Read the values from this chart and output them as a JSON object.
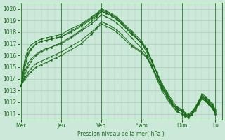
{
  "background_color": "#cce8d8",
  "grid_color": "#aaccbb",
  "line_color": "#1a6b1a",
  "marker_color": "#1a6b1a",
  "xlabel_text": "Pression niveau de la mer( hPa )",
  "x_tick_labels": [
    "Mer",
    "Jeu",
    "Ven",
    "Sam",
    "Dim",
    "Lu"
  ],
  "x_tick_positions": [
    0,
    48,
    96,
    144,
    192,
    232
  ],
  "ylim": [
    1010.5,
    1020.5
  ],
  "xlim": [
    -2,
    240
  ],
  "yticks": [
    1011,
    1012,
    1013,
    1014,
    1015,
    1016,
    1017,
    1018,
    1019,
    1020
  ],
  "lines": [
    {
      "x": [
        0,
        4,
        8,
        12,
        18,
        24,
        30,
        36,
        42,
        48,
        60,
        72,
        84,
        90,
        96,
        102,
        108,
        114,
        120,
        132,
        144,
        150,
        156,
        162,
        168,
        174,
        180,
        186,
        192,
        196,
        200,
        204,
        208,
        212,
        216,
        220,
        224,
        228,
        232
      ],
      "y": [
        1013.4,
        1014.2,
        1015.0,
        1015.5,
        1016.0,
        1016.3,
        1016.5,
        1016.7,
        1016.9,
        1017.1,
        1017.6,
        1018.2,
        1018.9,
        1019.3,
        1019.8,
        1019.6,
        1019.4,
        1019.1,
        1018.7,
        1017.9,
        1017.0,
        1016.5,
        1015.5,
        1014.5,
        1013.5,
        1012.8,
        1012.0,
        1011.5,
        1011.3,
        1011.0,
        1010.8,
        1011.0,
        1011.5,
        1012.0,
        1012.5,
        1012.3,
        1012.0,
        1011.7,
        1011.2
      ]
    },
    {
      "x": [
        0,
        4,
        8,
        12,
        18,
        24,
        30,
        36,
        42,
        48,
        60,
        72,
        84,
        90,
        96,
        102,
        108,
        114,
        120,
        132,
        144,
        150,
        156,
        162,
        168,
        174,
        180,
        186,
        192,
        196,
        200,
        204,
        208,
        212,
        216,
        220,
        224,
        228,
        232
      ],
      "y": [
        1013.4,
        1014.8,
        1016.0,
        1016.5,
        1017.0,
        1017.2,
        1017.3,
        1017.4,
        1017.5,
        1017.6,
        1018.1,
        1018.6,
        1019.2,
        1019.5,
        1019.9,
        1019.7,
        1019.5,
        1019.2,
        1018.8,
        1018.0,
        1017.0,
        1016.3,
        1015.2,
        1014.2,
        1013.2,
        1012.5,
        1011.8,
        1011.2,
        1011.0,
        1010.8,
        1010.7,
        1011.0,
        1011.5,
        1012.0,
        1012.5,
        1012.2,
        1011.9,
        1011.6,
        1011.1
      ]
    },
    {
      "x": [
        0,
        4,
        8,
        12,
        18,
        24,
        30,
        36,
        42,
        48,
        60,
        72,
        84,
        90,
        96,
        102,
        108,
        114,
        120,
        132,
        144,
        150,
        156,
        162,
        168,
        174,
        180,
        186,
        192,
        196,
        200,
        204,
        208,
        212,
        216,
        220,
        224,
        228,
        232
      ],
      "y": [
        1013.4,
        1014.5,
        1015.3,
        1015.7,
        1016.1,
        1016.4,
        1016.6,
        1016.7,
        1016.9,
        1017.0,
        1017.5,
        1018.1,
        1018.7,
        1019.1,
        1019.5,
        1019.3,
        1019.1,
        1018.8,
        1018.4,
        1017.5,
        1016.6,
        1016.0,
        1015.0,
        1014.0,
        1013.0,
        1012.3,
        1011.7,
        1011.2,
        1011.0,
        1010.8,
        1010.7,
        1010.9,
        1011.3,
        1011.8,
        1012.3,
        1012.1,
        1011.8,
        1011.5,
        1011.0
      ]
    },
    {
      "x": [
        0,
        4,
        8,
        12,
        18,
        24,
        30,
        36,
        42,
        48,
        60,
        72,
        84,
        90,
        96,
        102,
        108,
        114,
        120,
        132,
        144,
        150,
        156,
        162,
        168,
        174,
        180,
        186,
        192,
        196,
        200,
        204,
        208,
        212,
        216,
        220,
        224,
        228,
        232
      ],
      "y": [
        1013.4,
        1013.9,
        1014.3,
        1014.6,
        1015.0,
        1015.2,
        1015.4,
        1015.6,
        1015.8,
        1016.0,
        1016.5,
        1017.0,
        1017.8,
        1018.3,
        1018.7,
        1018.5,
        1018.3,
        1018.0,
        1017.6,
        1016.8,
        1016.2,
        1015.8,
        1015.0,
        1014.2,
        1013.3,
        1012.6,
        1011.9,
        1011.4,
        1011.2,
        1011.0,
        1010.9,
        1011.1,
        1011.5,
        1012.0,
        1012.4,
        1012.2,
        1011.9,
        1011.6,
        1011.1
      ]
    },
    {
      "x": [
        0,
        4,
        8,
        12,
        18,
        24,
        30,
        36,
        42,
        48,
        60,
        72,
        84,
        90,
        96,
        102,
        108,
        114,
        120,
        132,
        144,
        150,
        156,
        162,
        168,
        174,
        180,
        186,
        192,
        196,
        200,
        204,
        208,
        212,
        216,
        220,
        224,
        228,
        232
      ],
      "y": [
        1013.4,
        1014.0,
        1014.5,
        1014.9,
        1015.3,
        1015.5,
        1015.7,
        1015.9,
        1016.1,
        1016.3,
        1016.8,
        1017.3,
        1018.0,
        1018.4,
        1018.9,
        1018.7,
        1018.5,
        1018.2,
        1017.8,
        1016.9,
        1016.3,
        1015.9,
        1015.1,
        1014.2,
        1013.2,
        1012.5,
        1011.9,
        1011.4,
        1011.2,
        1010.9,
        1010.8,
        1011.0,
        1011.4,
        1011.9,
        1012.3,
        1012.1,
        1011.8,
        1011.5,
        1011.0
      ]
    },
    {
      "x": [
        0,
        4,
        8,
        12,
        18,
        24,
        30,
        36,
        42,
        48,
        60,
        72,
        84,
        90,
        96,
        102,
        108,
        114,
        120,
        132,
        144,
        150,
        156,
        162,
        168,
        174,
        180,
        186,
        192,
        196,
        200,
        204,
        208,
        212,
        216,
        220,
        224,
        228,
        232
      ],
      "y": [
        1013.4,
        1015.2,
        1016.2,
        1016.6,
        1017.0,
        1017.2,
        1017.3,
        1017.4,
        1017.5,
        1017.6,
        1018.0,
        1018.5,
        1019.1,
        1019.4,
        1019.8,
        1019.6,
        1019.4,
        1019.1,
        1018.7,
        1017.8,
        1017.1,
        1016.5,
        1015.5,
        1014.5,
        1013.4,
        1012.7,
        1012.0,
        1011.4,
        1011.2,
        1010.9,
        1010.8,
        1011.0,
        1011.5,
        1012.0,
        1012.6,
        1012.4,
        1012.1,
        1011.8,
        1011.3
      ]
    },
    {
      "x": [
        0,
        4,
        8,
        12,
        18,
        24,
        30,
        36,
        42,
        48,
        60,
        72,
        84,
        90,
        96,
        102,
        108,
        114,
        120,
        132,
        144,
        150,
        156,
        162,
        168,
        174,
        180,
        186,
        192,
        196,
        200,
        204,
        208,
        212,
        216,
        220,
        224,
        228,
        232
      ],
      "y": [
        1013.4,
        1015.5,
        1016.5,
        1016.9,
        1017.2,
        1017.4,
        1017.5,
        1017.6,
        1017.7,
        1017.8,
        1018.3,
        1018.7,
        1019.3,
        1019.6,
        1020.0,
        1019.8,
        1019.6,
        1019.3,
        1018.9,
        1018.1,
        1017.2,
        1016.6,
        1015.6,
        1014.6,
        1013.6,
        1012.9,
        1012.2,
        1011.6,
        1011.4,
        1011.1,
        1011.0,
        1011.2,
        1011.6,
        1012.1,
        1012.7,
        1012.5,
        1012.2,
        1011.9,
        1011.4
      ]
    }
  ]
}
